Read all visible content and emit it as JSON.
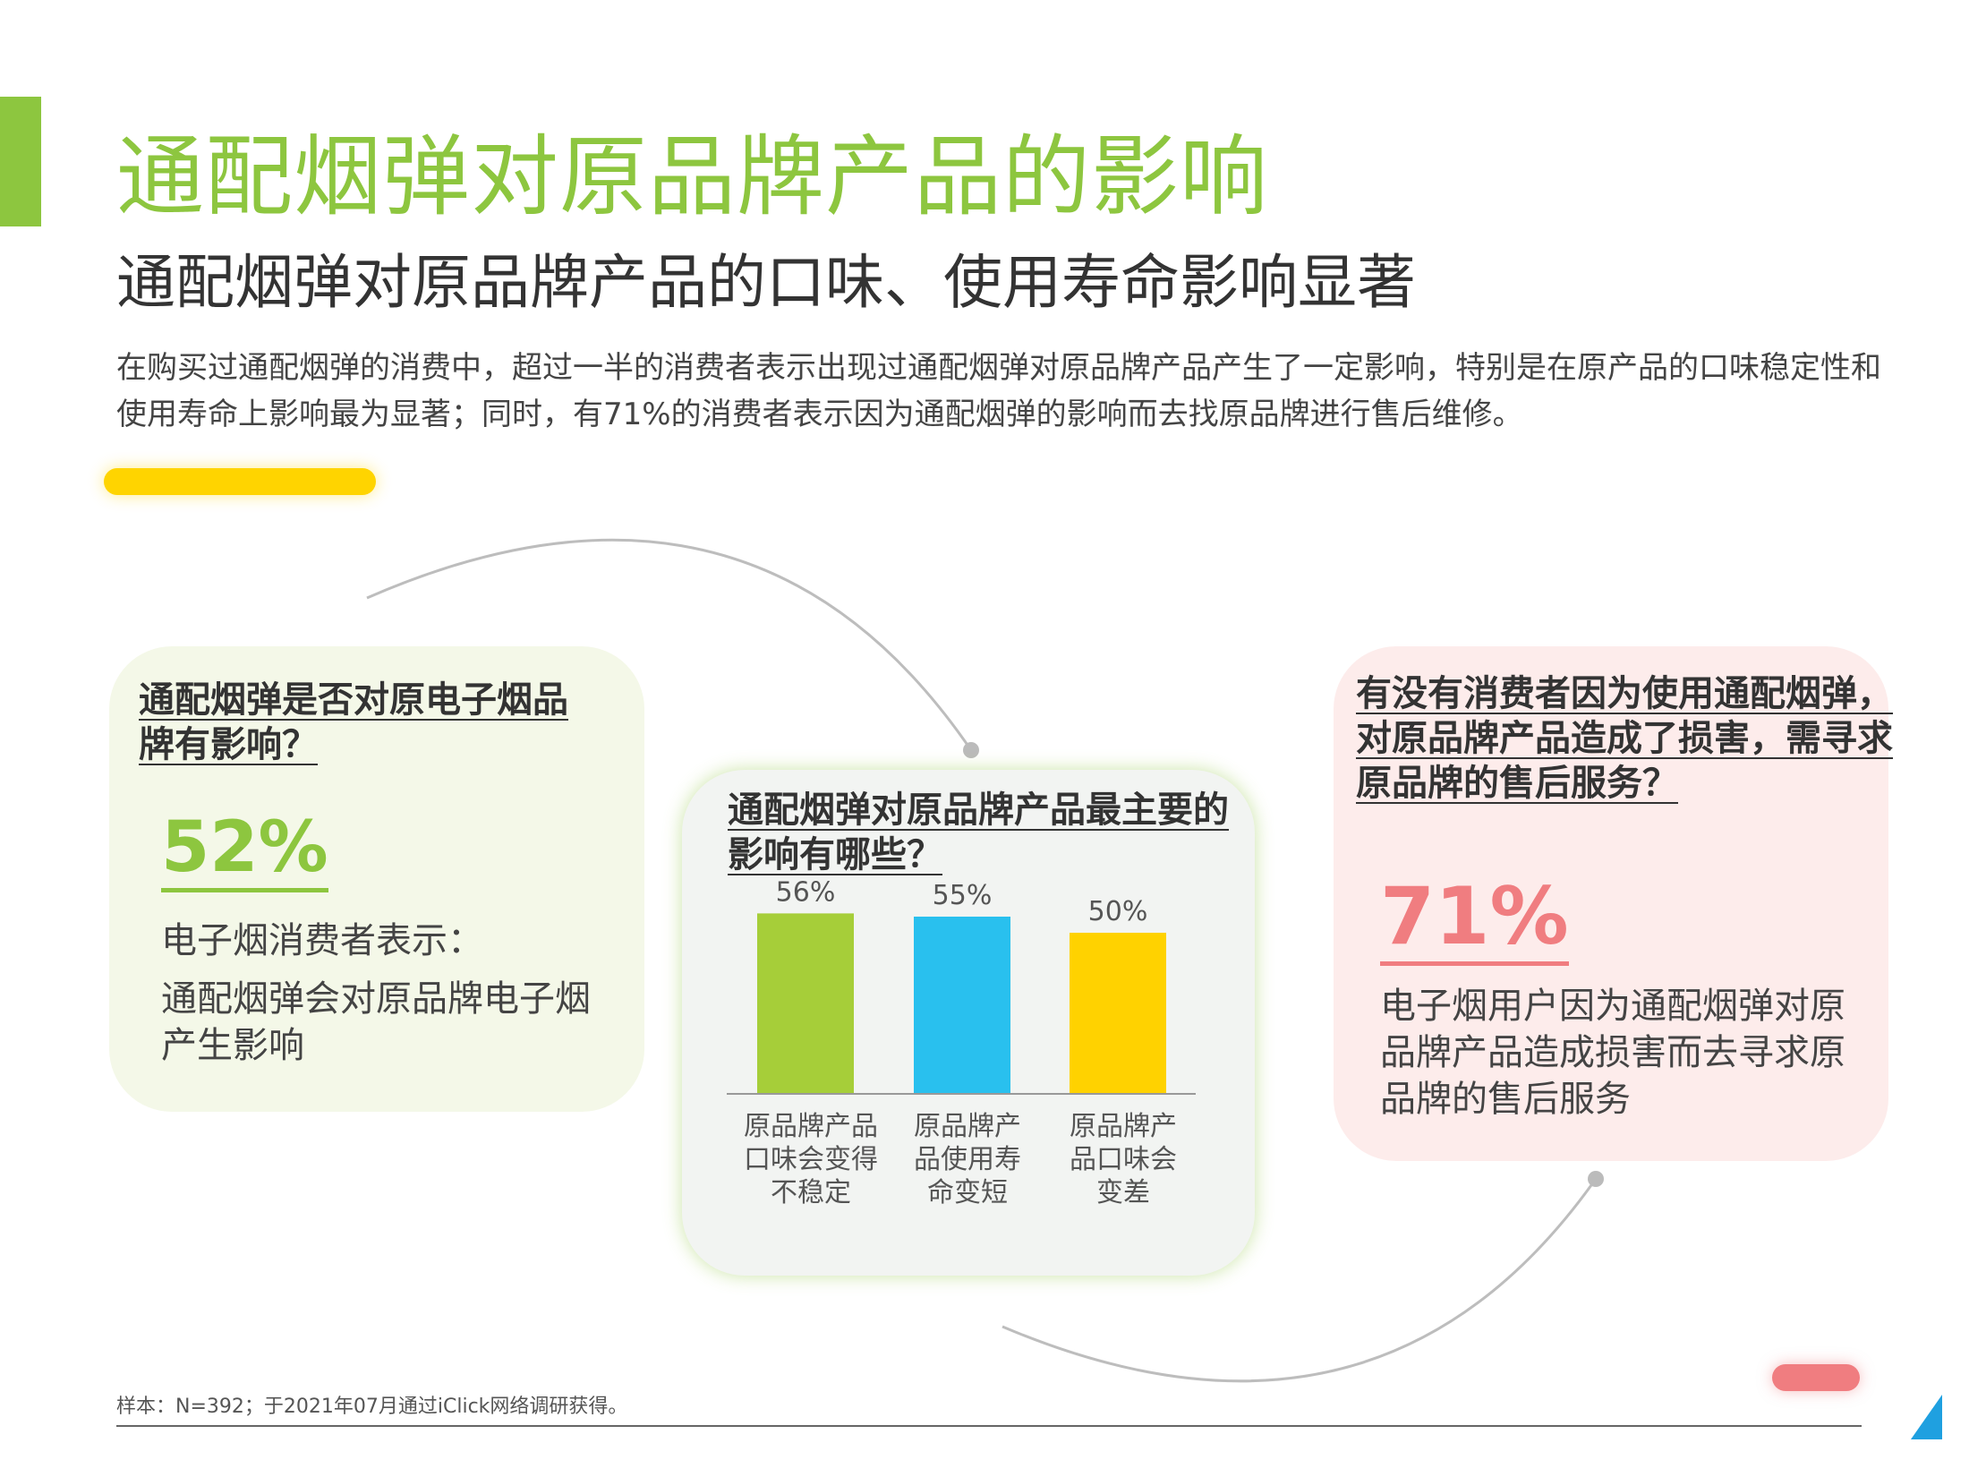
{
  "header": {
    "title": "通配烟弹对原品牌产品的影响",
    "subtitle": "通配烟弹对原品牌产品的口味、使用寿命影响显著",
    "intro": "在购买过通配烟弹的消费中，超过一半的消费者表示出现过通配烟弹对原品牌产品产生了一定影响，特别是在原产品的口味稳定性和使用寿命上影响最为显著；同时，有71%的消费者表示因为通配烟弹的影响而去找原品牌进行售后维修。"
  },
  "left_card": {
    "question": "通配烟弹是否对原电子烟品牌有影响？",
    "stat": "52%",
    "label": "电子烟消费者表示：",
    "description": "通配烟弹会对原品牌电子烟产生影响"
  },
  "middle_card": {
    "question": "通配烟弹对原品牌产品最主要的影响有哪些？"
  },
  "right_card": {
    "question": "有没有消费者因为使用通配烟弹，对原品牌产品造成了损害，需寻求原品牌的售后服务？",
    "stat": "71%",
    "description": "电子烟用户因为通配烟弹对原品牌产品造成损害而去寻求原品牌的售后服务"
  },
  "footer": {
    "note": "样本：N=392；于2021年07月通过iClick网络调研获得。"
  },
  "colors": {
    "green": "#8dc63f",
    "bar_green": "#a6ce39",
    "bar_blue": "#29c0ee",
    "bar_yellow": "#ffd200",
    "pink": "#f07d80"
  },
  "chart_data": {
    "type": "bar",
    "title": "通配烟弹对原品牌产品最主要的影响有哪些？",
    "categories": [
      [
        "原品牌产品",
        "口味会变得",
        "不稳定"
      ],
      [
        "原品牌产",
        "品使用寿",
        "命变短"
      ],
      [
        "原品牌产",
        "品口味会",
        "变差"
      ]
    ],
    "values": [
      56,
      55,
      50
    ],
    "data_labels": [
      "56%",
      "55%",
      "50%"
    ],
    "bar_colors": [
      "#a6ce39",
      "#29c0ee",
      "#ffd200"
    ],
    "ylim": [
      0,
      100
    ],
    "grid": false,
    "legend": "none"
  }
}
